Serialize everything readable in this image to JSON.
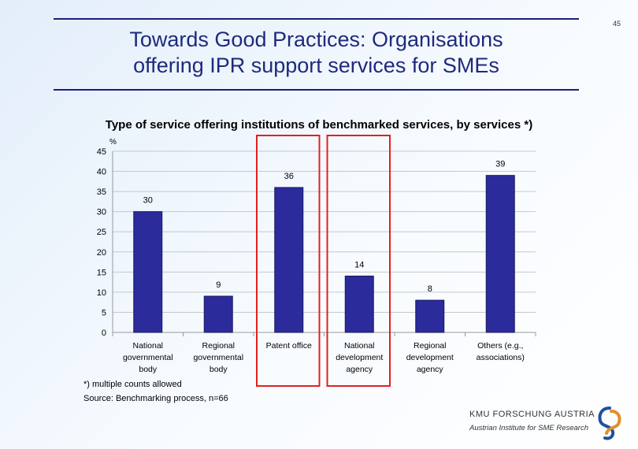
{
  "slide_number": "45",
  "title_line1": "Towards Good Practices: Organisations",
  "title_line2": "offering IPR support services for SMEs",
  "subtitle": "Type of service offering institutions of benchmarked services, by services *)",
  "footnote": "*) multiple counts allowed",
  "source": "Source: Benchmarking process, n=66",
  "logo": {
    "name": "KMU FORSCHUNG AUSTRIA",
    "tagline": "Austrian Institute for SME Research"
  },
  "colors": {
    "bar": "#2b2b9b",
    "highlight": "#e02020",
    "title": "#1f2a7c",
    "rule": "#1b1f73"
  },
  "chart_data": {
    "type": "bar",
    "title": "",
    "xlabel": "",
    "ylabel": "%",
    "ylim": [
      0,
      45
    ],
    "yticks": [
      0,
      5,
      10,
      15,
      20,
      25,
      30,
      35,
      40,
      45
    ],
    "grid": true,
    "categories": [
      [
        "National",
        "governmental",
        "body"
      ],
      [
        "Regional",
        "governmental",
        "body"
      ],
      [
        "Patent office"
      ],
      [
        "National",
        "development",
        "agency"
      ],
      [
        "Regional",
        "development",
        "agency"
      ],
      [
        "Others (e.g.,",
        "associations)"
      ]
    ],
    "values": [
      30,
      9,
      36,
      14,
      8,
      39
    ],
    "highlighted_categories": [
      2,
      3
    ]
  }
}
